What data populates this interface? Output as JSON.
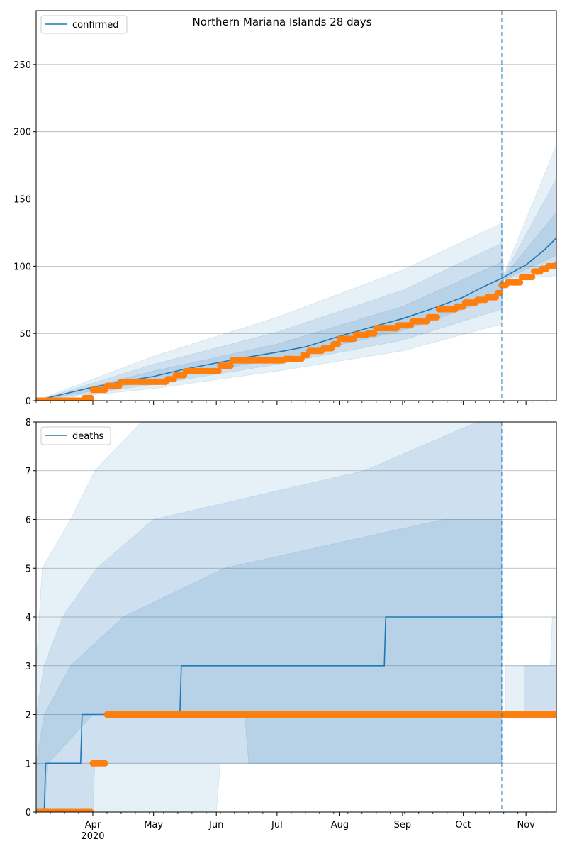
{
  "chart_data": [
    {
      "type": "line",
      "title": "Northern Mariana Islands 28 days",
      "legend": {
        "entries": [
          "confirmed"
        ],
        "placement": "top-left"
      },
      "grid": "horizontal",
      "x_range": [
        "2020-03-04",
        "2020-11-16"
      ],
      "ylim": [
        0,
        290
      ],
      "yticks": [
        0,
        50,
        100,
        150,
        200,
        250
      ],
      "forecast_start": "2020-10-20",
      "series": [
        {
          "name": "confirmed",
          "kind": "model-mean",
          "color": "#1f77b4",
          "points": [
            [
              "2020-03-04",
              0
            ],
            [
              "2020-03-15",
              4
            ],
            [
              "2020-04-01",
              10
            ],
            [
              "2020-04-15",
              14
            ],
            [
              "2020-05-01",
              18
            ],
            [
              "2020-05-15",
              23
            ],
            [
              "2020-06-01",
              28
            ],
            [
              "2020-06-15",
              32
            ],
            [
              "2020-07-01",
              36
            ],
            [
              "2020-07-15",
              40
            ],
            [
              "2020-08-01",
              48
            ],
            [
              "2020-08-15",
              54
            ],
            [
              "2020-09-01",
              61
            ],
            [
              "2020-09-15",
              68
            ],
            [
              "2020-10-01",
              77
            ],
            [
              "2020-10-10",
              84
            ],
            [
              "2020-10-20",
              91
            ],
            [
              "2020-11-01",
              101
            ],
            [
              "2020-11-10",
              112
            ],
            [
              "2020-11-16",
              121
            ]
          ],
          "bands": [
            {
              "level": "outer",
              "lower": [
                [
                  "2020-03-04",
                  0
                ],
                [
                  "2020-05-01",
                  9
                ],
                [
                  "2020-07-01",
                  22
                ],
                [
                  "2020-09-01",
                  37
                ],
                [
                  "2020-10-20",
                  57
                ],
                [
                  "2020-10-21",
                  90
                ],
                [
                  "2020-11-16",
                  93
                ]
              ],
              "upper": [
                [
                  "2020-03-04",
                  0
                ],
                [
                  "2020-05-01",
                  33
                ],
                [
                  "2020-07-01",
                  62
                ],
                [
                  "2020-09-01",
                  97
                ],
                [
                  "2020-10-20",
                  132
                ],
                [
                  "2020-10-21",
                  94
                ],
                [
                  "2020-11-16",
                  190
                ]
              ]
            },
            {
              "level": "middle",
              "lower": [
                [
                  "2020-03-04",
                  0
                ],
                [
                  "2020-05-01",
                  12
                ],
                [
                  "2020-07-01",
                  27
                ],
                [
                  "2020-09-01",
                  45
                ],
                [
                  "2020-10-20",
                  68
                ],
                [
                  "2020-10-21",
                  90
                ],
                [
                  "2020-11-16",
                  100
                ]
              ],
              "upper": [
                [
                  "2020-03-04",
                  0
                ],
                [
                  "2020-05-01",
                  27
                ],
                [
                  "2020-07-01",
                  51
                ],
                [
                  "2020-09-01",
                  82
                ],
                [
                  "2020-10-20",
                  117
                ],
                [
                  "2020-10-21",
                  93
                ],
                [
                  "2020-11-16",
                  165
                ]
              ]
            },
            {
              "level": "inner",
              "lower": [
                [
                  "2020-03-04",
                  0
                ],
                [
                  "2020-05-01",
                  15
                ],
                [
                  "2020-07-01",
                  31
                ],
                [
                  "2020-09-01",
                  52
                ],
                [
                  "2020-10-20",
                  78
                ],
                [
                  "2020-10-21",
                  90
                ],
                [
                  "2020-11-16",
                  108
                ]
              ],
              "upper": [
                [
                  "2020-03-04",
                  0
                ],
                [
                  "2020-05-01",
                  22
                ],
                [
                  "2020-07-01",
                  42
                ],
                [
                  "2020-09-01",
                  70
                ],
                [
                  "2020-10-20",
                  103
                ],
                [
                  "2020-10-21",
                  92
                ],
                [
                  "2020-11-16",
                  140
                ]
              ]
            }
          ]
        },
        {
          "kind": "observed",
          "color": "#ff7f0e",
          "steps": [
            [
              "2020-03-04",
              0
            ],
            [
              "2020-03-28",
              2
            ],
            [
              "2020-04-01",
              8
            ],
            [
              "2020-04-08",
              11
            ],
            [
              "2020-04-15",
              14
            ],
            [
              "2020-05-08",
              16
            ],
            [
              "2020-05-12",
              19
            ],
            [
              "2020-05-17",
              22
            ],
            [
              "2020-06-03",
              26
            ],
            [
              "2020-06-09",
              30
            ],
            [
              "2020-07-05",
              31
            ],
            [
              "2020-07-14",
              34
            ],
            [
              "2020-07-17",
              37
            ],
            [
              "2020-07-24",
              39
            ],
            [
              "2020-07-29",
              42
            ],
            [
              "2020-08-01",
              46
            ],
            [
              "2020-08-09",
              49
            ],
            [
              "2020-08-15",
              50
            ],
            [
              "2020-08-19",
              54
            ],
            [
              "2020-08-30",
              56
            ],
            [
              "2020-09-06",
              59
            ],
            [
              "2020-09-14",
              62
            ],
            [
              "2020-09-19",
              68
            ],
            [
              "2020-09-28",
              70
            ],
            [
              "2020-10-02",
              73
            ],
            [
              "2020-10-08",
              75
            ],
            [
              "2020-10-13",
              77
            ],
            [
              "2020-10-18",
              80
            ],
            [
              "2020-10-20",
              86
            ],
            [
              "2020-10-23",
              88
            ],
            [
              "2020-10-30",
              92
            ],
            [
              "2020-11-05",
              96
            ],
            [
              "2020-11-09",
              98
            ],
            [
              "2020-11-12",
              100
            ],
            [
              "2020-11-16",
              101
            ]
          ]
        }
      ]
    },
    {
      "type": "line",
      "legend": {
        "entries": [
          "deaths"
        ],
        "placement": "top-left"
      },
      "grid": "horizontal",
      "x_range": [
        "2020-03-04",
        "2020-11-16"
      ],
      "ylim": [
        0,
        8
      ],
      "yticks": [
        0,
        1,
        2,
        3,
        4,
        5,
        6,
        7,
        8
      ],
      "xticks": [
        "Apr",
        "May",
        "Jun",
        "Jul",
        "Aug",
        "Sep",
        "Oct",
        "Nov"
      ],
      "x_year_label": "2020",
      "forecast_start": "2020-10-20",
      "series": [
        {
          "name": "deaths",
          "kind": "model-mean",
          "color": "#1f77b4",
          "steps": [
            [
              "2020-03-04",
              0
            ],
            [
              "2020-03-08",
              1
            ],
            [
              "2020-03-26",
              2
            ],
            [
              "2020-05-14",
              3
            ],
            [
              "2020-08-23",
              4
            ],
            [
              "2020-10-20",
              4
            ]
          ],
          "bands": [
            {
              "level": "outer",
              "lower": [
                [
                  "2020-03-04",
                  0
                ],
                [
                  "2020-06-01",
                  0
                ],
                [
                  "2020-06-03",
                  1
                ],
                [
                  "2020-10-20",
                  1
                ]
              ],
              "upper": [
                [
                  "2020-03-04",
                  3
                ],
                [
                  "2020-03-07",
                  5
                ],
                [
                  "2020-03-21",
                  6
                ],
                [
                  "2020-04-02",
                  7
                ],
                [
                  "2020-04-25",
                  8
                ],
                [
                  "2020-10-20",
                  8
                ]
              ]
            },
            {
              "level": "middle",
              "lower": [
                [
                  "2020-03-04",
                  0
                ],
                [
                  "2020-04-01",
                  0
                ],
                [
                  "2020-04-02",
                  1
                ],
                [
                  "2020-10-20",
                  1
                ]
              ],
              "upper": [
                [
                  "2020-03-04",
                  2
                ],
                [
                  "2020-03-08",
                  3
                ],
                [
                  "2020-03-17",
                  4
                ],
                [
                  "2020-04-03",
                  5
                ],
                [
                  "2020-05-01",
                  6
                ],
                [
                  "2020-08-13",
                  7
                ],
                [
                  "2020-10-08",
                  8
                ],
                [
                  "2020-10-20",
                  8
                ]
              ]
            },
            {
              "level": "inner",
              "lower": [
                [
                  "2020-03-04",
                  0
                ],
                [
                  "2020-03-08",
                  0
                ],
                [
                  "2020-03-10",
                  1
                ],
                [
                  "2020-04-01",
                  2
                ],
                [
                  "2020-06-15",
                  2
                ],
                [
                  "2020-06-17",
                  1
                ],
                [
                  "2020-10-20",
                  1
                ]
              ],
              "upper": [
                [
                  "2020-03-04",
                  1
                ],
                [
                  "2020-03-08",
                  2
                ],
                [
                  "2020-03-21",
                  3
                ],
                [
                  "2020-04-16",
                  4
                ],
                [
                  "2020-06-05",
                  5
                ],
                [
                  "2020-09-21",
                  6
                ],
                [
                  "2020-10-20",
                  6
                ]
              ]
            }
          ],
          "forecast_bands": [
            {
              "level": "outer",
              "lower": [
                [
                  "2020-10-22",
                  2
                ],
                [
                  "2020-11-16",
                  2
                ]
              ],
              "upper": [
                [
                  "2020-10-22",
                  3
                ],
                [
                  "2020-11-13",
                  3
                ],
                [
                  "2020-11-14",
                  4
                ],
                [
                  "2020-11-16",
                  4
                ]
              ]
            },
            {
              "level": "middle",
              "lower": [
                [
                  "2020-10-31",
                  2
                ],
                [
                  "2020-11-16",
                  2
                ]
              ],
              "upper": [
                [
                  "2020-10-31",
                  3
                ],
                [
                  "2020-11-16",
                  3
                ]
              ]
            }
          ]
        },
        {
          "kind": "observed",
          "color": "#ff7f0e",
          "steps": [
            [
              "2020-03-04",
              0
            ],
            [
              "2020-04-01",
              1
            ],
            [
              "2020-04-08",
              2
            ],
            [
              "2020-11-16",
              2
            ]
          ]
        }
      ]
    }
  ]
}
